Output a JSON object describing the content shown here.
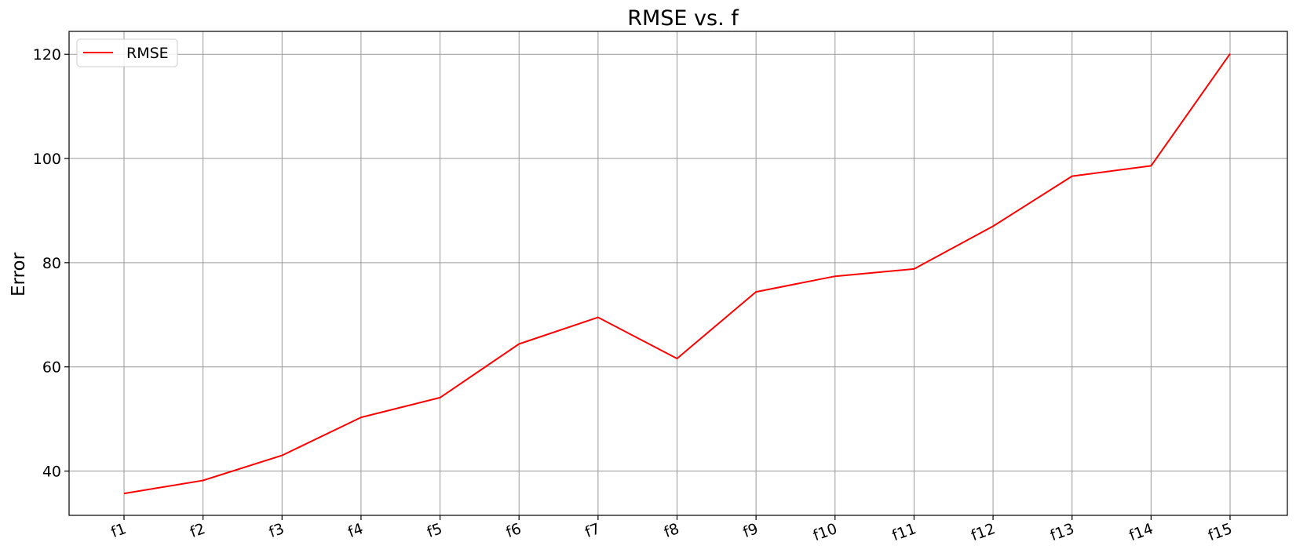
{
  "chart_data": {
    "type": "line",
    "title": "RMSE vs. f",
    "xlabel": "",
    "ylabel": "Error",
    "categories": [
      "f1",
      "f2",
      "f3",
      "f4",
      "f5",
      "f6",
      "f7",
      "f8",
      "f9",
      "f10",
      "f11",
      "f12",
      "f13",
      "f14",
      "f15"
    ],
    "series": [
      {
        "name": "RMSE",
        "color": "#ff0000",
        "values": [
          35.7,
          38.2,
          43.0,
          50.3,
          54.1,
          64.4,
          69.5,
          61.6,
          74.4,
          77.4,
          78.8,
          87.0,
          96.6,
          98.6,
          120.1
        ]
      }
    ],
    "yticks": [
      40,
      60,
      80,
      100,
      120
    ],
    "ylim": [
      31.5,
      124.4
    ],
    "grid": true,
    "legend_position": "top-left"
  }
}
